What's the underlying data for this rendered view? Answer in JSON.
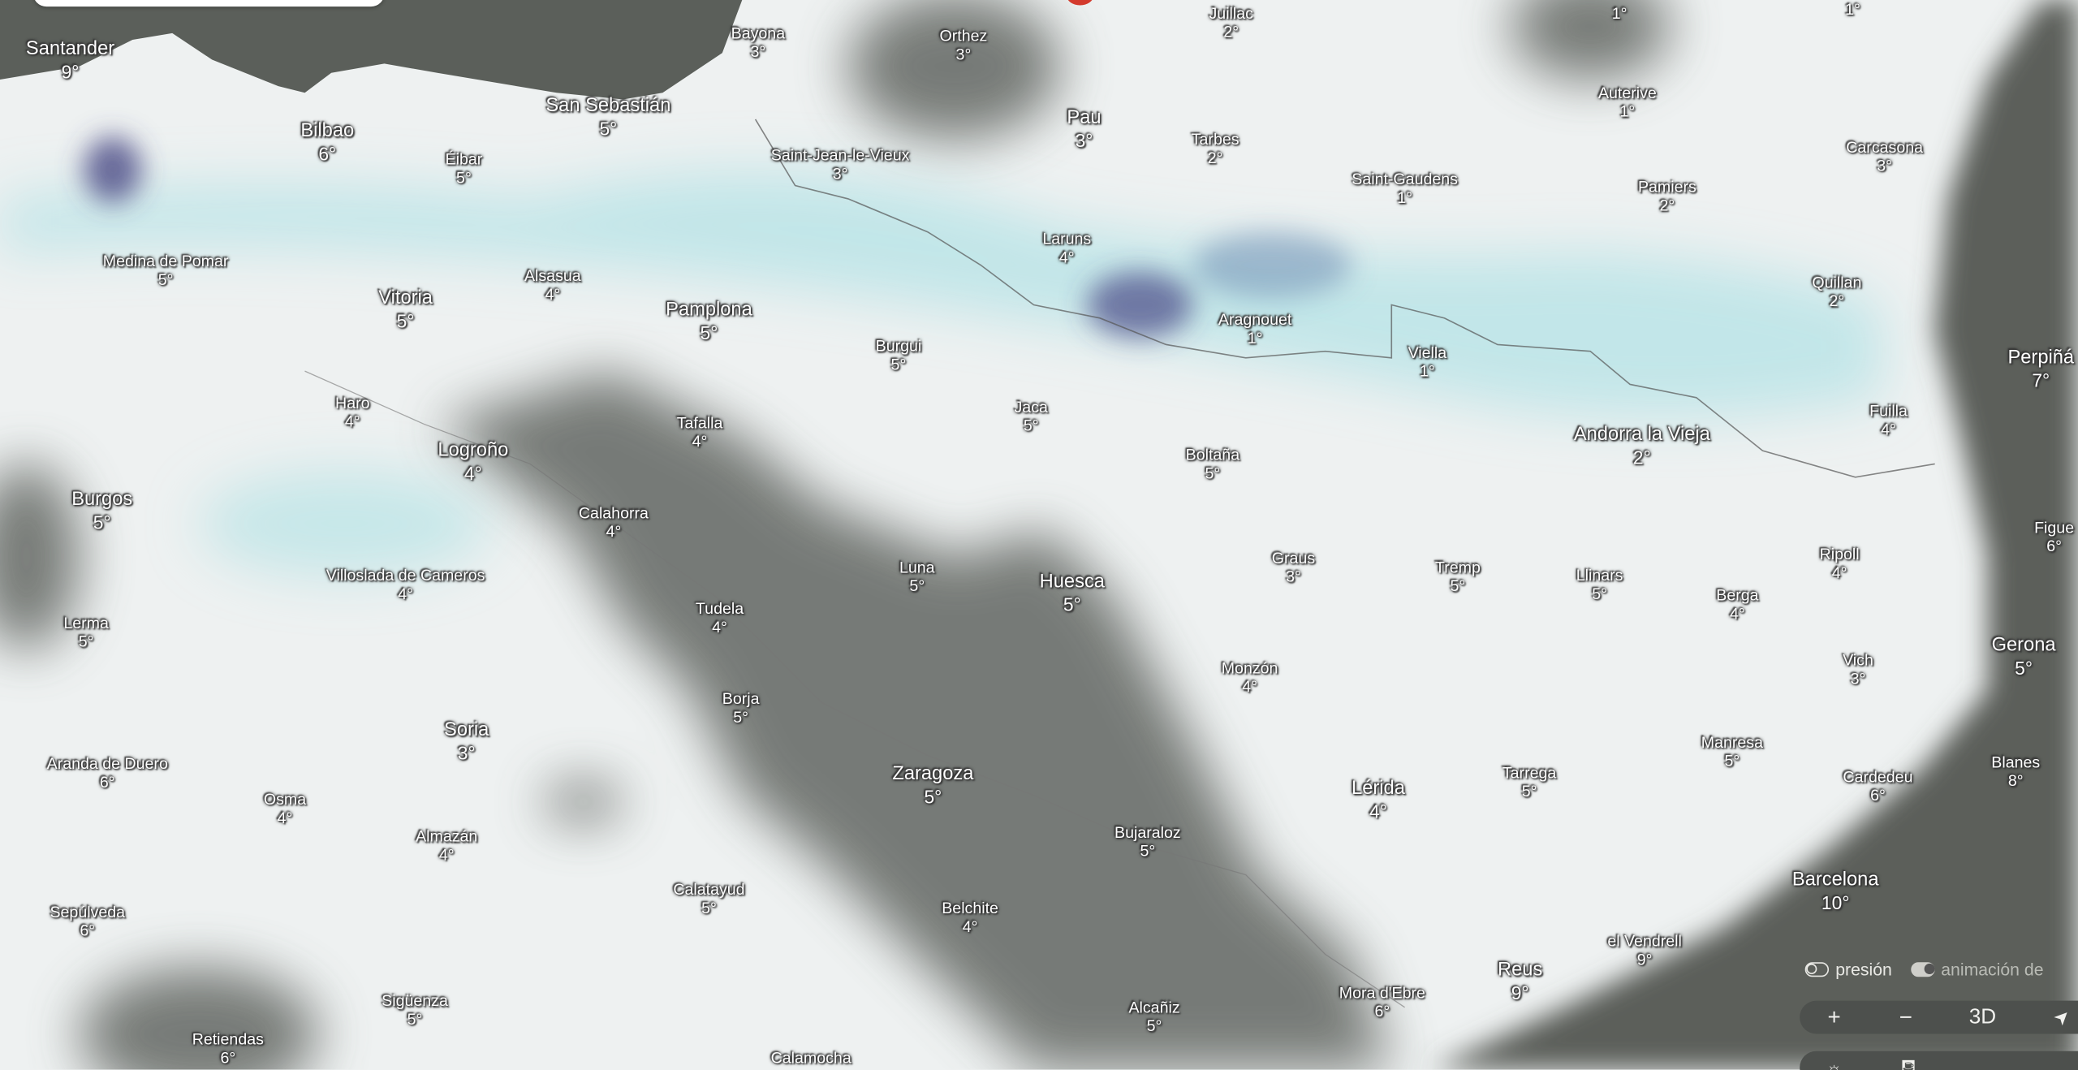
{
  "colors": {
    "land": "#eef1f1",
    "sea": "#5b5f5a",
    "cloud": "#6b6e6a",
    "precip_light": "#9fdde2",
    "precip_heavy": "#4a4a86"
  },
  "labels": [
    {
      "name": "Santander",
      "temp": "9°"
    },
    {
      "name": "Bayona",
      "temp": "3°"
    },
    {
      "name": "Orthez",
      "temp": "3°"
    },
    {
      "name": "Juillac",
      "temp": "2°"
    },
    {
      "name": "",
      "temp": "1°"
    },
    {
      "name": "",
      "temp": "1°"
    },
    {
      "name": "Auterive",
      "temp": "1°"
    },
    {
      "name": "Bilbao",
      "temp": "6°"
    },
    {
      "name": "San Sebastián",
      "temp": "5°"
    },
    {
      "name": "Éibar",
      "temp": "5°"
    },
    {
      "name": "Pau",
      "temp": "3°"
    },
    {
      "name": "Tarbes",
      "temp": "2°"
    },
    {
      "name": "Saint-Jean-le-Vieux",
      "temp": "3°"
    },
    {
      "name": "Saint-Gaudens",
      "temp": "1°"
    },
    {
      "name": "Pamiers",
      "temp": "2°"
    },
    {
      "name": "Carcasona",
      "temp": "3°"
    },
    {
      "name": "Medina de Pomar",
      "temp": "5°"
    },
    {
      "name": "Vitoria",
      "temp": "5°"
    },
    {
      "name": "Alsasua",
      "temp": "4°"
    },
    {
      "name": "Pamplona",
      "temp": "5°"
    },
    {
      "name": "Laruns",
      "temp": "4°"
    },
    {
      "name": "Aragnouet",
      "temp": "1°"
    },
    {
      "name": "Burgui",
      "temp": "5°"
    },
    {
      "name": "Viella",
      "temp": "1°"
    },
    {
      "name": "Quillan",
      "temp": "2°"
    },
    {
      "name": "Perpiñá",
      "temp": "7°"
    },
    {
      "name": "Haro",
      "temp": "4°"
    },
    {
      "name": "Tafalla",
      "temp": "4°"
    },
    {
      "name": "Jaca",
      "temp": "5°"
    },
    {
      "name": "Logroño",
      "temp": "4°"
    },
    {
      "name": "Boltaña",
      "temp": "5°"
    },
    {
      "name": "Andorra la Vieja",
      "temp": "2°"
    },
    {
      "name": "Fuilla",
      "temp": "4°"
    },
    {
      "name": "Burgos",
      "temp": "5°"
    },
    {
      "name": "Calahorra",
      "temp": "4°"
    },
    {
      "name": "Figue",
      "temp": "6°"
    },
    {
      "name": "Villoslada de Cameros",
      "temp": "4°"
    },
    {
      "name": "Luna",
      "temp": "5°"
    },
    {
      "name": "Huesca",
      "temp": "5°"
    },
    {
      "name": "Graus",
      "temp": "3°"
    },
    {
      "name": "Tremp",
      "temp": "5°"
    },
    {
      "name": "Llinars",
      "temp": "5°"
    },
    {
      "name": "Berga",
      "temp": "4°"
    },
    {
      "name": "Ripoll",
      "temp": "4°"
    },
    {
      "name": "Lerma",
      "temp": "5°"
    },
    {
      "name": "Tudela",
      "temp": "4°"
    },
    {
      "name": "Gerona",
      "temp": "5°"
    },
    {
      "name": "Monzón",
      "temp": "4°"
    },
    {
      "name": "Vich",
      "temp": "3°"
    },
    {
      "name": "Borja",
      "temp": "5°"
    },
    {
      "name": "Soria",
      "temp": "3°"
    },
    {
      "name": "Aranda de Duero",
      "temp": "6°"
    },
    {
      "name": "Zaragoza",
      "temp": "5°"
    },
    {
      "name": "Lérida",
      "temp": "4°"
    },
    {
      "name": "Tarrega",
      "temp": "5°"
    },
    {
      "name": "Manresa",
      "temp": "5°"
    },
    {
      "name": "Cardedeu",
      "temp": "6°"
    },
    {
      "name": "Blanes",
      "temp": "8°"
    },
    {
      "name": "Osma",
      "temp": "4°"
    },
    {
      "name": "Almazán",
      "temp": "4°"
    },
    {
      "name": "Bujaraloz",
      "temp": "5°"
    },
    {
      "name": "Calatayud",
      "temp": "5°"
    },
    {
      "name": "Barcelona",
      "temp": "10°"
    },
    {
      "name": "Sepúlveda",
      "temp": "6°"
    },
    {
      "name": "Belchite",
      "temp": "4°"
    },
    {
      "name": "el Vendrell",
      "temp": "9°"
    },
    {
      "name": "Reus",
      "temp": "9°"
    },
    {
      "name": "Sigüenza",
      "temp": "5°"
    },
    {
      "name": "Mora d'Ebre",
      "temp": "6°"
    },
    {
      "name": "Alcañiz",
      "temp": "5°"
    },
    {
      "name": "Retiendas",
      "temp": "6°"
    },
    {
      "name": "Calamocha",
      "temp": ""
    }
  ],
  "toggles": {
    "pressure": "presión",
    "animation": "animación de"
  },
  "controls": {
    "zoom_in": "+",
    "zoom_out": "−",
    "mode_3d": "3D",
    "locate": "➤"
  }
}
